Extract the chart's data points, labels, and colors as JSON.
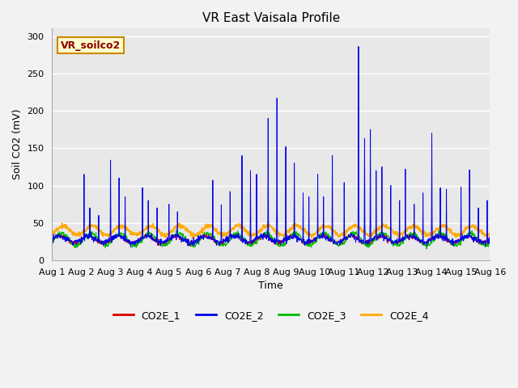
{
  "title": "VR East Vaisala Profile",
  "xlabel": "Time",
  "ylabel": "Soil CO2 (mV)",
  "annotation": "VR_soilco2",
  "ylim": [
    0,
    310
  ],
  "yticks": [
    0,
    50,
    100,
    150,
    200,
    250,
    300
  ],
  "fig_bg": "#f2f2f2",
  "plot_bg": "#e8e8e8",
  "series_colors": {
    "CO2E_1": "#dd0000",
    "CO2E_2": "#0000ee",
    "CO2E_3": "#00bb00",
    "CO2E_4": "#ffaa00"
  },
  "n_days": 15,
  "points_per_day": 96,
  "title_fontsize": 11,
  "label_fontsize": 9,
  "tick_fontsize": 8,
  "legend_fontsize": 9,
  "annotation_fontsize": 9,
  "spike_times_days": [
    1.1,
    1.3,
    1.6,
    2.0,
    2.3,
    2.5,
    3.1,
    3.3,
    3.6,
    4.0,
    4.3,
    5.5,
    5.8,
    6.1,
    6.5,
    6.8,
    7.0,
    7.4,
    7.7,
    8.0,
    8.3,
    8.6,
    8.8,
    9.1,
    9.3,
    9.6,
    10.0,
    10.5,
    10.7,
    10.9,
    11.1,
    11.3,
    11.6,
    11.9,
    12.1,
    12.4,
    12.7,
    13.0,
    13.3,
    13.5,
    14.0,
    14.3,
    14.6,
    14.9
  ],
  "spike_heights": [
    115,
    70,
    60,
    134,
    110,
    85,
    97,
    80,
    70,
    75,
    65,
    107,
    74,
    92,
    140,
    120,
    115,
    190,
    217,
    152,
    130,
    90,
    85,
    115,
    85,
    140,
    104,
    286,
    163,
    175,
    120,
    125,
    100,
    80,
    122,
    75,
    90,
    170,
    97,
    95,
    98,
    121,
    70,
    80
  ],
  "seed": 7
}
